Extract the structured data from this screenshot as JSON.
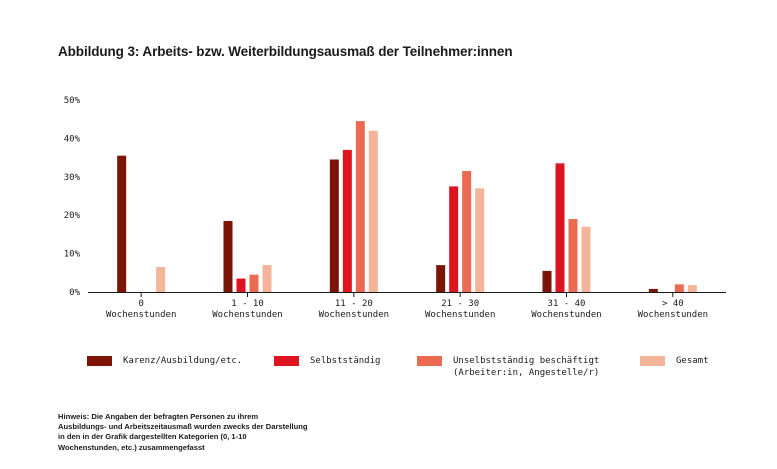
{
  "page": {
    "title": "Abbildung 3: Arbeits- bzw. Weiterbildungsausmaß der Teilnehmer:innen",
    "footnote": "Hinweis: Die Angaben der befragten Personen zu ihrem Ausbildungs- und Arbeitszeitausmaß wurden zwecks der Darstellung in den in der Grafik dargestellten Kategorien (0, 1-10 Wochenstunden, etc.) zusammengefasst"
  },
  "chart_data": {
    "type": "bar",
    "title": "Abbildung 3: Arbeits- bzw. Weiterbildungsausmaß der Teilnehmer:innen",
    "xlabel": "",
    "ylabel": "",
    "ylim": [
      0,
      50
    ],
    "y_ticks": [
      "0%",
      "10%",
      "20%",
      "30%",
      "40%",
      "50%"
    ],
    "y_tick_values": [
      0,
      10,
      20,
      30,
      40,
      50
    ],
    "grid": false,
    "legend_position": "bottom",
    "categories": [
      [
        "0",
        "Wochenstunden"
      ],
      [
        "1 - 10",
        "Wochenstunden"
      ],
      [
        "11 - 20",
        "Wochenstunden"
      ],
      [
        "21 - 30",
        "Wochenstunden"
      ],
      [
        "31 - 40",
        "Wochenstunden"
      ],
      [
        "> 40",
        "Wochenstunden"
      ]
    ],
    "series": [
      {
        "name": "Karenz/Ausbildung/etc.",
        "color": "#7a1508",
        "values": [
          35.5,
          18.5,
          34.5,
          7.0,
          5.5,
          0.8
        ]
      },
      {
        "name": "Selbstständig",
        "color": "#dd1520",
        "values": [
          0,
          3.5,
          37,
          27.5,
          33.5,
          0
        ]
      },
      {
        "name": "Unselbstständig beschäftigt\n(Arbeiter:in, Angestelle/r)",
        "color": "#ea6a52",
        "values": [
          0,
          4.5,
          44.5,
          31.5,
          19,
          2.0
        ]
      },
      {
        "name": "Gesamt",
        "color": "#f3b49a",
        "values": [
          6.5,
          7.0,
          42,
          27,
          17,
          1.8
        ]
      }
    ]
  }
}
